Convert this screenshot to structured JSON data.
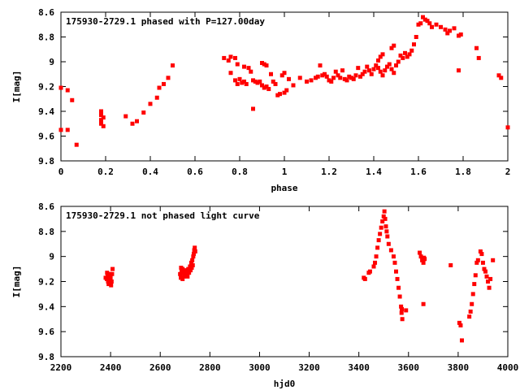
{
  "chart_data": [
    {
      "type": "scatter",
      "title": "175930-2729.1 phased with P=127.00day",
      "xlabel": "phase",
      "ylabel": "I[mag]",
      "xlim": [
        0,
        2
      ],
      "ylim": [
        9.8,
        8.6
      ],
      "y_inverted": true,
      "x_ticks": [
        0,
        0.2,
        0.4,
        0.6,
        0.8,
        1,
        1.2,
        1.4,
        1.6,
        1.8,
        2
      ],
      "x_tick_labels": [
        "0",
        "0.2",
        "0.4",
        "0.6",
        "0.8",
        "1",
        "1.2",
        "1.4",
        "1.6",
        "1.8",
        "2"
      ],
      "y_ticks": [
        8.6,
        8.8,
        9,
        9.2,
        9.4,
        9.6,
        9.8
      ],
      "y_tick_labels": [
        "8.6",
        "8.8",
        "9",
        "9.2",
        "9.4",
        "9.6",
        "9.8"
      ],
      "grid": false,
      "marker_color": "#ff0000",
      "series": [
        {
          "points": [
            [
              0.0,
              9.21
            ],
            [
              0.03,
              9.23
            ],
            [
              0.05,
              9.31
            ],
            [
              0.0,
              9.55
            ],
            [
              0.03,
              9.55
            ],
            [
              0.07,
              9.67
            ],
            [
              0.18,
              9.4
            ],
            [
              0.18,
              9.43
            ],
            [
              0.19,
              9.45
            ],
            [
              0.18,
              9.47
            ],
            [
              0.18,
              9.5
            ],
            [
              0.19,
              9.52
            ],
            [
              0.29,
              9.44
            ],
            [
              0.32,
              9.5
            ],
            [
              0.34,
              9.48
            ],
            [
              0.37,
              9.41
            ],
            [
              0.4,
              9.34
            ],
            [
              0.43,
              9.29
            ],
            [
              0.44,
              9.21
            ],
            [
              0.46,
              9.18
            ],
            [
              0.48,
              9.13
            ],
            [
              0.5,
              9.03
            ],
            [
              0.73,
              8.97
            ],
            [
              0.75,
              8.99
            ],
            [
              0.76,
              8.96
            ],
            [
              0.78,
              8.97
            ],
            [
              0.79,
              9.02
            ],
            [
              0.76,
              9.09
            ],
            [
              0.78,
              9.15
            ],
            [
              0.79,
              9.18
            ],
            [
              0.8,
              9.14
            ],
            [
              0.81,
              9.17
            ],
            [
              0.82,
              9.16
            ],
            [
              0.83,
              9.18
            ],
            [
              0.82,
              9.04
            ],
            [
              0.84,
              9.05
            ],
            [
              0.85,
              9.08
            ],
            [
              0.86,
              9.15
            ],
            [
              0.87,
              9.16
            ],
            [
              0.88,
              9.17
            ],
            [
              0.89,
              9.16
            ],
            [
              0.9,
              9.01
            ],
            [
              0.91,
              9.02
            ],
            [
              0.92,
              9.03
            ],
            [
              0.9,
              9.19
            ],
            [
              0.91,
              9.21
            ],
            [
              0.92,
              9.2
            ],
            [
              0.93,
              9.22
            ],
            [
              0.94,
              9.1
            ],
            [
              0.95,
              9.16
            ],
            [
              0.96,
              9.18
            ],
            [
              0.97,
              9.27
            ],
            [
              0.98,
              9.26
            ],
            [
              1.0,
              9.25
            ],
            [
              1.01,
              9.23
            ],
            [
              0.99,
              9.11
            ],
            [
              1.02,
              9.14
            ],
            [
              1.04,
              9.19
            ],
            [
              1.07,
              9.13
            ],
            [
              1.0,
              9.09
            ],
            [
              0.86,
              9.38
            ],
            [
              1.1,
              9.16
            ],
            [
              1.12,
              9.15
            ],
            [
              1.14,
              9.13
            ],
            [
              1.15,
              9.12
            ],
            [
              1.16,
              9.03
            ],
            [
              1.17,
              9.11
            ],
            [
              1.18,
              9.1
            ],
            [
              1.19,
              9.12
            ],
            [
              1.2,
              9.15
            ],
            [
              1.21,
              9.16
            ],
            [
              1.22,
              9.13
            ],
            [
              1.23,
              9.08
            ],
            [
              1.24,
              9.11
            ],
            [
              1.25,
              9.13
            ],
            [
              1.26,
              9.07
            ],
            [
              1.27,
              9.14
            ],
            [
              1.28,
              9.15
            ],
            [
              1.29,
              9.12
            ],
            [
              1.3,
              9.13
            ],
            [
              1.31,
              9.14
            ],
            [
              1.32,
              9.11
            ],
            [
              1.33,
              9.05
            ],
            [
              1.34,
              9.12
            ],
            [
              1.35,
              9.1
            ],
            [
              1.36,
              9.08
            ],
            [
              1.37,
              9.04
            ],
            [
              1.38,
              9.07
            ],
            [
              1.39,
              9.1
            ],
            [
              1.4,
              9.06
            ],
            [
              1.41,
              9.03
            ],
            [
              1.42,
              9.05
            ],
            [
              1.43,
              9.08
            ],
            [
              1.44,
              9.11
            ],
            [
              1.45,
              9.07
            ],
            [
              1.46,
              9.04
            ],
            [
              1.47,
              9.02
            ],
            [
              1.48,
              9.06
            ],
            [
              1.49,
              9.09
            ],
            [
              1.5,
              9.03
            ],
            [
              1.42,
              8.99
            ],
            [
              1.43,
              8.96
            ],
            [
              1.44,
              8.94
            ],
            [
              1.48,
              8.89
            ],
            [
              1.49,
              8.87
            ],
            [
              1.51,
              9.0
            ],
            [
              1.52,
              8.95
            ],
            [
              1.53,
              8.97
            ],
            [
              1.54,
              8.93
            ],
            [
              1.55,
              8.96
            ],
            [
              1.56,
              8.94
            ],
            [
              1.57,
              8.91
            ],
            [
              1.58,
              8.86
            ],
            [
              1.59,
              8.8
            ],
            [
              1.6,
              8.7
            ],
            [
              1.61,
              8.69
            ],
            [
              1.62,
              8.64
            ],
            [
              1.63,
              8.66
            ],
            [
              1.64,
              8.67
            ],
            [
              1.65,
              8.69
            ],
            [
              1.66,
              8.72
            ],
            [
              1.68,
              8.7
            ],
            [
              1.7,
              8.72
            ],
            [
              1.72,
              8.74
            ],
            [
              1.73,
              8.77
            ],
            [
              1.74,
              8.75
            ],
            [
              1.76,
              8.73
            ],
            [
              1.78,
              8.79
            ],
            [
              1.79,
              8.78
            ],
            [
              1.78,
              9.07
            ],
            [
              1.86,
              8.89
            ],
            [
              1.87,
              8.97
            ],
            [
              1.96,
              9.11
            ],
            [
              1.97,
              9.13
            ],
            [
              2.0,
              9.53
            ]
          ]
        }
      ]
    },
    {
      "type": "scatter",
      "title": "175930-2729.1 not phased light curve",
      "xlabel": "hjd0",
      "ylabel": "I[mag]",
      "xlim": [
        2200,
        4000
      ],
      "ylim": [
        9.8,
        8.6
      ],
      "y_inverted": true,
      "x_ticks": [
        2200,
        2400,
        2600,
        2800,
        3000,
        3200,
        3400,
        3600,
        3800,
        4000
      ],
      "x_tick_labels": [
        "2200",
        "2400",
        "2600",
        "2800",
        "3000",
        "3200",
        "3400",
        "3600",
        "3800",
        "4000"
      ],
      "y_ticks": [
        8.6,
        8.8,
        9,
        9.2,
        9.4,
        9.6,
        9.8
      ],
      "y_tick_labels": [
        "8.6",
        "8.8",
        "9",
        "9.2",
        "9.4",
        "9.6",
        "9.8"
      ],
      "grid": false,
      "marker_color": "#ff0000",
      "series": [
        {
          "points": [
            [
              2380,
              9.17
            ],
            [
              2385,
              9.18
            ],
            [
              2388,
              9.15
            ],
            [
              2390,
              9.2
            ],
            [
              2393,
              9.16
            ],
            [
              2395,
              9.19
            ],
            [
              2398,
              9.21
            ],
            [
              2400,
              9.17
            ],
            [
              2402,
              9.23
            ],
            [
              2404,
              9.2
            ],
            [
              2406,
              9.14
            ],
            [
              2408,
              9.1
            ],
            [
              2386,
              9.13
            ],
            [
              2392,
              9.22
            ],
            [
              2397,
              9.14
            ],
            [
              2680,
              9.14
            ],
            [
              2683,
              9.17
            ],
            [
              2686,
              9.12
            ],
            [
              2690,
              9.18
            ],
            [
              2693,
              9.13
            ],
            [
              2696,
              9.16
            ],
            [
              2700,
              9.11
            ],
            [
              2703,
              9.15
            ],
            [
              2706,
              9.12
            ],
            [
              2710,
              9.16
            ],
            [
              2713,
              9.1
            ],
            [
              2716,
              9.13
            ],
            [
              2720,
              9.08
            ],
            [
              2722,
              9.11
            ],
            [
              2725,
              9.05
            ],
            [
              2727,
              9.09
            ],
            [
              2729,
              9.03
            ],
            [
              2731,
              9.07
            ],
            [
              2733,
              9.0
            ],
            [
              2735,
              8.98
            ],
            [
              2737,
              8.95
            ],
            [
              2739,
              8.93
            ],
            [
              2741,
              8.96
            ],
            [
              2711,
              9.12
            ],
            [
              2690,
              9.1
            ],
            [
              2684,
              9.09
            ],
            [
              3420,
              9.17
            ],
            [
              3425,
              9.18
            ],
            [
              3440,
              9.13
            ],
            [
              3445,
              9.12
            ],
            [
              3460,
              9.08
            ],
            [
              3465,
              9.05
            ],
            [
              3470,
              9.0
            ],
            [
              3475,
              8.93
            ],
            [
              3480,
              8.87
            ],
            [
              3485,
              8.82
            ],
            [
              3490,
              8.77
            ],
            [
              3495,
              8.72
            ],
            [
              3500,
              8.68
            ],
            [
              3503,
              8.64
            ],
            [
              3506,
              8.7
            ],
            [
              3509,
              8.76
            ],
            [
              3512,
              8.8
            ],
            [
              3515,
              8.84
            ],
            [
              3520,
              8.9
            ],
            [
              3530,
              8.95
            ],
            [
              3540,
              9.0
            ],
            [
              3545,
              9.05
            ],
            [
              3550,
              9.12
            ],
            [
              3555,
              9.18
            ],
            [
              3560,
              9.25
            ],
            [
              3565,
              9.32
            ],
            [
              3570,
              9.4
            ],
            [
              3572,
              9.45
            ],
            [
              3575,
              9.5
            ],
            [
              3573,
              9.42
            ],
            [
              3590,
              9.43
            ],
            [
              3645,
              8.97
            ],
            [
              3650,
              9.0
            ],
            [
              3655,
              9.03
            ],
            [
              3660,
              9.05
            ],
            [
              3662,
              9.01
            ],
            [
              3665,
              9.02
            ],
            [
              3660,
              9.38
            ],
            [
              3770,
              9.07
            ],
            [
              3805,
              9.53
            ],
            [
              3810,
              9.55
            ],
            [
              3815,
              9.67
            ],
            [
              3845,
              9.48
            ],
            [
              3850,
              9.44
            ],
            [
              3855,
              9.38
            ],
            [
              3860,
              9.3
            ],
            [
              3865,
              9.22
            ],
            [
              3870,
              9.15
            ],
            [
              3875,
              9.05
            ],
            [
              3880,
              9.03
            ],
            [
              3890,
              8.96
            ],
            [
              3895,
              8.98
            ],
            [
              3900,
              9.05
            ],
            [
              3905,
              9.1
            ],
            [
              3910,
              9.12
            ],
            [
              3915,
              9.16
            ],
            [
              3920,
              9.2
            ],
            [
              3925,
              9.25
            ],
            [
              3930,
              9.18
            ],
            [
              3940,
              9.03
            ]
          ]
        }
      ]
    }
  ]
}
